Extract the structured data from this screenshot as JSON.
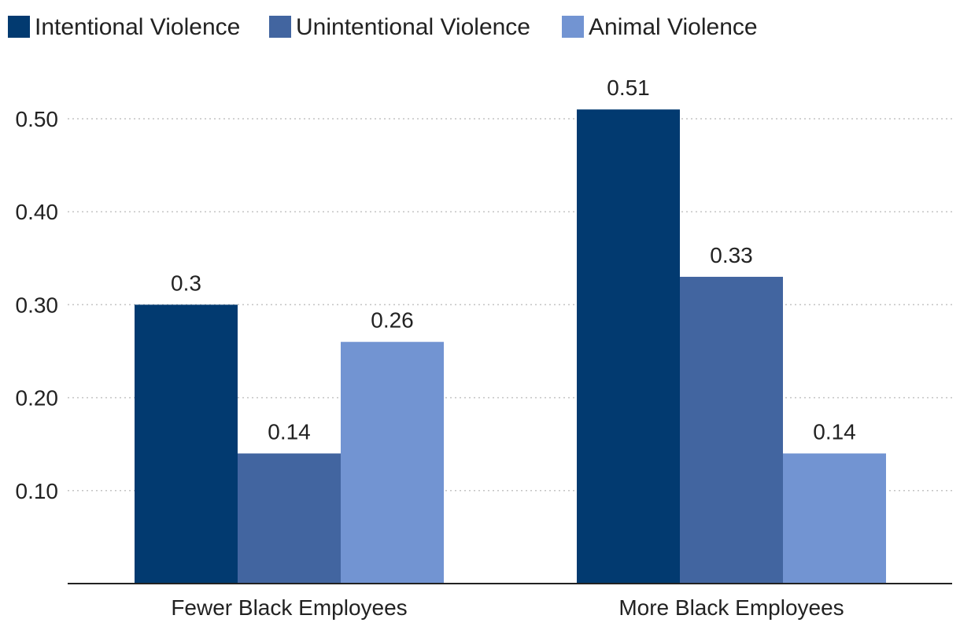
{
  "chart_data": {
    "type": "bar",
    "title": "",
    "xlabel": "",
    "ylabel": "",
    "categories": [
      "Fewer Black Employees",
      "More Black Employees"
    ],
    "series": [
      {
        "name": "Intentional Violence",
        "values": [
          0.3,
          0.51
        ],
        "labels": [
          "0.3",
          "0.51"
        ],
        "color": "#023a70"
      },
      {
        "name": "Unintentional Violence",
        "values": [
          0.14,
          0.33
        ],
        "labels": [
          "0.14",
          "0.33"
        ],
        "color": "#4265a0"
      },
      {
        "name": "Animal Violence",
        "values": [
          0.26,
          0.14
        ],
        "labels": [
          "0.26",
          "0.14"
        ],
        "color": "#7294d2"
      }
    ],
    "ylim": [
      0,
      0.5
    ],
    "yticks": [
      0.1,
      0.2,
      0.3,
      0.4,
      0.5
    ],
    "ytick_labels": [
      "0.10",
      "0.20",
      "0.30",
      "0.40",
      "0.50"
    ],
    "grid": true,
    "legend_position": "top-left"
  }
}
